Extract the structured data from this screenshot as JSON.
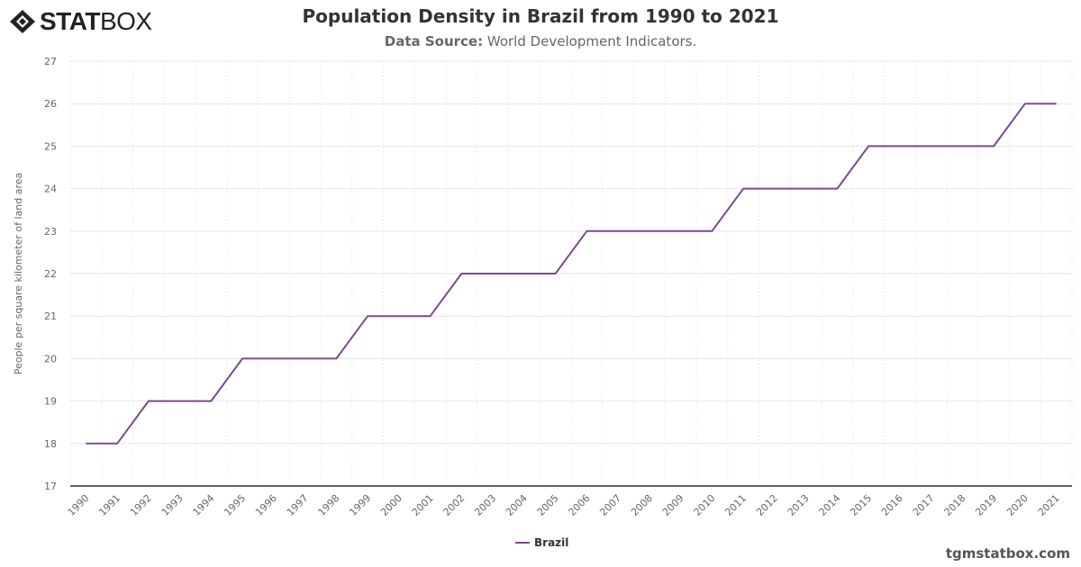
{
  "logo": {
    "text_bold": "STAT",
    "text_light": "BOX"
  },
  "header": {
    "title": "Population Density in Brazil from 1990 to 2021",
    "subtitle_label": "Data Source:",
    "subtitle_value": "World Development Indicators."
  },
  "watermark": "tgmstatbox.com",
  "chart_data": {
    "type": "line",
    "title": "Population Density in Brazil from 1990 to 2021",
    "ylabel": "People per square kilometer of land area",
    "xlabel": "",
    "ylim": [
      17,
      27
    ],
    "yticks": [
      17,
      18,
      19,
      20,
      21,
      22,
      23,
      24,
      25,
      26,
      27
    ],
    "grid": true,
    "legend_placement": "bottom-center",
    "categories": [
      "1990",
      "1991",
      "1992",
      "1993",
      "1994",
      "1995",
      "1996",
      "1997",
      "1998",
      "1999",
      "2000",
      "2001",
      "2002",
      "2003",
      "2004",
      "2005",
      "2006",
      "2007",
      "2008",
      "2009",
      "2010",
      "2011",
      "2012",
      "2013",
      "2014",
      "2015",
      "2016",
      "2017",
      "2018",
      "2019",
      "2020",
      "2021"
    ],
    "series": [
      {
        "name": "Brazil",
        "color": "#7b4a91",
        "values": [
          18,
          18,
          19,
          19,
          19,
          20,
          20,
          20,
          20,
          21,
          21,
          21,
          22,
          22,
          22,
          22,
          23,
          23,
          23,
          23,
          23,
          24,
          24,
          24,
          24,
          25,
          25,
          25,
          25,
          25,
          26,
          26
        ]
      }
    ]
  }
}
